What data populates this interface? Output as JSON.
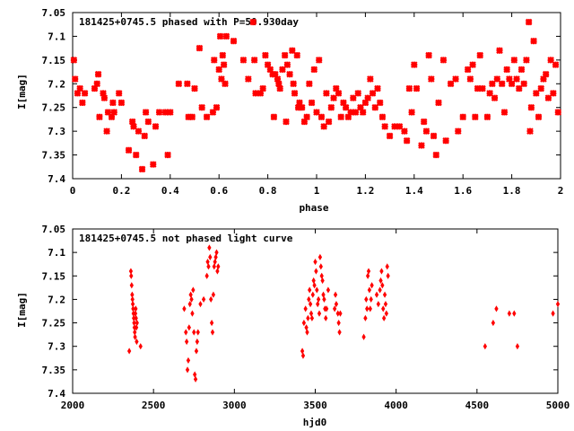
{
  "chart_data": [
    {
      "type": "scatter",
      "title": "181425+0745.5 phased with P=50.930day",
      "xlabel": "phase",
      "ylabel": "I[mag]",
      "xlim": [
        0,
        2
      ],
      "ylim": [
        7.4,
        7.05
      ],
      "y_inverted": true,
      "grid": false,
      "marker": "star",
      "color": "#ff0000",
      "xticks": [
        "0",
        "0.2",
        "0.4",
        "0.6",
        "0.8",
        "1",
        "1.2",
        "1.4",
        "1.6",
        "1.8",
        "2"
      ],
      "yticks": [
        "7.05",
        "7.1",
        "7.15",
        "7.2",
        "7.25",
        "7.3",
        "7.35",
        "7.4"
      ],
      "points": [
        [
          0.005,
          7.15
        ],
        [
          0.01,
          7.19
        ],
        [
          0.02,
          7.22
        ],
        [
          0.03,
          7.21
        ],
        [
          0.04,
          7.24
        ],
        [
          0.05,
          7.22
        ],
        [
          0.09,
          7.21
        ],
        [
          0.1,
          7.2
        ],
        [
          0.105,
          7.18
        ],
        [
          0.11,
          7.27
        ],
        [
          0.125,
          7.22
        ],
        [
          0.13,
          7.23
        ],
        [
          0.14,
          7.3
        ],
        [
          0.145,
          7.26
        ],
        [
          0.16,
          7.27
        ],
        [
          0.165,
          7.24
        ],
        [
          0.17,
          7.26
        ],
        [
          0.19,
          7.22
        ],
        [
          0.2,
          7.24
        ],
        [
          0.23,
          7.34
        ],
        [
          0.245,
          7.28
        ],
        [
          0.25,
          7.29
        ],
        [
          0.26,
          7.35
        ],
        [
          0.27,
          7.3
        ],
        [
          0.285,
          7.38
        ],
        [
          0.295,
          7.31
        ],
        [
          0.3,
          7.26
        ],
        [
          0.31,
          7.28
        ],
        [
          0.33,
          7.37
        ],
        [
          0.34,
          7.29
        ],
        [
          0.355,
          7.26
        ],
        [
          0.38,
          7.26
        ],
        [
          0.39,
          7.35
        ],
        [
          0.4,
          7.26
        ],
        [
          0.435,
          7.2
        ],
        [
          0.47,
          7.2
        ],
        [
          0.475,
          7.27
        ],
        [
          0.49,
          7.27
        ],
        [
          0.5,
          7.21
        ],
        [
          0.52,
          7.125
        ],
        [
          0.53,
          7.25
        ],
        [
          0.55,
          7.27
        ],
        [
          0.575,
          7.26
        ],
        [
          0.58,
          7.15
        ],
        [
          0.59,
          7.25
        ],
        [
          0.6,
          7.17
        ],
        [
          0.605,
          7.1
        ],
        [
          0.61,
          7.19
        ],
        [
          0.615,
          7.14
        ],
        [
          0.62,
          7.16
        ],
        [
          0.625,
          7.2
        ],
        [
          0.63,
          7.1
        ],
        [
          0.66,
          7.11
        ],
        [
          0.7,
          7.15
        ],
        [
          0.72,
          7.19
        ],
        [
          0.74,
          7.07
        ],
        [
          0.745,
          7.15
        ],
        [
          0.75,
          7.22
        ],
        [
          0.77,
          7.22
        ],
        [
          0.78,
          7.21
        ],
        [
          0.79,
          7.14
        ],
        [
          0.8,
          7.16
        ],
        [
          0.81,
          7.17
        ],
        [
          0.82,
          7.18
        ],
        [
          0.825,
          7.27
        ],
        [
          0.83,
          7.18
        ],
        [
          0.84,
          7.19
        ],
        [
          0.845,
          7.2
        ],
        [
          0.85,
          7.21
        ],
        [
          0.86,
          7.17
        ],
        [
          0.87,
          7.14
        ],
        [
          0.875,
          7.28
        ],
        [
          0.88,
          7.16
        ],
        [
          0.89,
          7.18
        ],
        [
          0.9,
          7.13
        ],
        [
          0.905,
          7.2
        ],
        [
          0.91,
          7.22
        ],
        [
          0.92,
          7.14
        ],
        [
          0.925,
          7.25
        ],
        [
          0.93,
          7.24
        ],
        [
          0.94,
          7.25
        ],
        [
          0.95,
          7.28
        ],
        [
          0.96,
          7.27
        ],
        [
          0.97,
          7.2
        ],
        [
          0.98,
          7.24
        ],
        [
          0.99,
          7.17
        ],
        [
          1.0,
          7.26
        ],
        [
          1.01,
          7.15
        ],
        [
          1.02,
          7.27
        ],
        [
          1.03,
          7.29
        ],
        [
          1.04,
          7.22
        ],
        [
          1.05,
          7.28
        ],
        [
          1.06,
          7.25
        ],
        [
          1.07,
          7.23
        ],
        [
          1.08,
          7.21
        ],
        [
          1.09,
          7.22
        ],
        [
          1.1,
          7.27
        ],
        [
          1.11,
          7.24
        ],
        [
          1.12,
          7.25
        ],
        [
          1.13,
          7.27
        ],
        [
          1.14,
          7.26
        ],
        [
          1.15,
          7.23
        ],
        [
          1.16,
          7.26
        ],
        [
          1.17,
          7.22
        ],
        [
          1.18,
          7.25
        ],
        [
          1.19,
          7.26
        ],
        [
          1.2,
          7.24
        ],
        [
          1.21,
          7.23
        ],
        [
          1.22,
          7.19
        ],
        [
          1.23,
          7.22
        ],
        [
          1.24,
          7.25
        ],
        [
          1.25,
          7.21
        ],
        [
          1.26,
          7.24
        ],
        [
          1.27,
          7.27
        ],
        [
          1.28,
          7.29
        ],
        [
          1.3,
          7.31
        ],
        [
          1.32,
          7.29
        ],
        [
          1.34,
          7.29
        ],
        [
          1.36,
          7.3
        ],
        [
          1.37,
          7.32
        ],
        [
          1.38,
          7.21
        ],
        [
          1.39,
          7.26
        ],
        [
          1.4,
          7.16
        ],
        [
          1.41,
          7.21
        ],
        [
          1.43,
          7.33
        ],
        [
          1.44,
          7.28
        ],
        [
          1.45,
          7.3
        ],
        [
          1.46,
          7.14
        ],
        [
          1.47,
          7.19
        ],
        [
          1.48,
          7.31
        ],
        [
          1.49,
          7.35
        ],
        [
          1.5,
          7.24
        ],
        [
          1.52,
          7.15
        ],
        [
          1.53,
          7.32
        ],
        [
          1.55,
          7.2
        ],
        [
          1.57,
          7.19
        ],
        [
          1.58,
          7.3
        ],
        [
          1.6,
          7.27
        ],
        [
          1.62,
          7.17
        ],
        [
          1.63,
          7.19
        ],
        [
          1.64,
          7.16
        ],
        [
          1.65,
          7.27
        ],
        [
          1.66,
          7.21
        ],
        [
          1.67,
          7.14
        ],
        [
          1.68,
          7.21
        ],
        [
          1.7,
          7.27
        ],
        [
          1.71,
          7.22
        ],
        [
          1.72,
          7.2
        ],
        [
          1.73,
          7.23
        ],
        [
          1.74,
          7.19
        ],
        [
          1.75,
          7.13
        ],
        [
          1.76,
          7.2
        ],
        [
          1.77,
          7.26
        ],
        [
          1.78,
          7.17
        ],
        [
          1.79,
          7.19
        ],
        [
          1.8,
          7.2
        ],
        [
          1.81,
          7.15
        ],
        [
          1.82,
          7.19
        ],
        [
          1.83,
          7.21
        ],
        [
          1.84,
          7.17
        ],
        [
          1.85,
          7.2
        ],
        [
          1.86,
          7.15
        ],
        [
          1.87,
          7.07
        ],
        [
          1.875,
          7.3
        ],
        [
          1.88,
          7.25
        ],
        [
          1.89,
          7.11
        ],
        [
          1.9,
          7.22
        ],
        [
          1.91,
          7.27
        ],
        [
          1.92,
          7.21
        ],
        [
          1.93,
          7.19
        ],
        [
          1.94,
          7.18
        ],
        [
          1.95,
          7.23
        ],
        [
          1.96,
          7.15
        ],
        [
          1.97,
          7.22
        ],
        [
          1.98,
          7.16
        ],
        [
          1.99,
          7.26
        ]
      ]
    },
    {
      "type": "scatter",
      "title": "181425+0745.5 not phased light curve",
      "xlabel": "hjd0",
      "ylabel": "I[mag]",
      "xlim": [
        2000,
        5000
      ],
      "ylim": [
        7.4,
        7.05
      ],
      "y_inverted": true,
      "grid": false,
      "marker": "diamond",
      "color": "#ff0000",
      "xticks": [
        "2000",
        "2500",
        "3000",
        "3500",
        "4000",
        "4500",
        "5000"
      ],
      "yticks": [
        "7.05",
        "7.1",
        "7.15",
        "7.2",
        "7.25",
        "7.3",
        "7.35",
        "7.4"
      ],
      "points": [
        [
          2350,
          7.31
        ],
        [
          2360,
          7.14
        ],
        [
          2362,
          7.15
        ],
        [
          2365,
          7.17
        ],
        [
          2368,
          7.19
        ],
        [
          2370,
          7.2
        ],
        [
          2372,
          7.21
        ],
        [
          2374,
          7.22
        ],
        [
          2376,
          7.23
        ],
        [
          2378,
          7.24
        ],
        [
          2380,
          7.25
        ],
        [
          2382,
          7.26
        ],
        [
          2384,
          7.27
        ],
        [
          2386,
          7.28
        ],
        [
          2388,
          7.23
        ],
        [
          2390,
          7.22
        ],
        [
          2392,
          7.24
        ],
        [
          2394,
          7.26
        ],
        [
          2396,
          7.29
        ],
        [
          2398,
          7.25
        ],
        [
          2420,
          7.3
        ],
        [
          2690,
          7.22
        ],
        [
          2700,
          7.27
        ],
        [
          2705,
          7.29
        ],
        [
          2710,
          7.35
        ],
        [
          2715,
          7.33
        ],
        [
          2720,
          7.26
        ],
        [
          2725,
          7.21
        ],
        [
          2730,
          7.19
        ],
        [
          2735,
          7.2
        ],
        [
          2740,
          7.23
        ],
        [
          2745,
          7.18
        ],
        [
          2750,
          7.27
        ],
        [
          2755,
          7.36
        ],
        [
          2760,
          7.37
        ],
        [
          2765,
          7.31
        ],
        [
          2770,
          7.29
        ],
        [
          2775,
          7.27
        ],
        [
          2790,
          7.21
        ],
        [
          2810,
          7.2
        ],
        [
          2830,
          7.15
        ],
        [
          2835,
          7.12
        ],
        [
          2840,
          7.13
        ],
        [
          2845,
          7.09
        ],
        [
          2850,
          7.11
        ],
        [
          2855,
          7.2
        ],
        [
          2860,
          7.25
        ],
        [
          2865,
          7.27
        ],
        [
          2870,
          7.19
        ],
        [
          2875,
          7.13
        ],
        [
          2880,
          7.12
        ],
        [
          2885,
          7.11
        ],
        [
          2890,
          7.1
        ],
        [
          2895,
          7.14
        ],
        [
          2900,
          7.13
        ],
        [
          3420,
          7.31
        ],
        [
          3425,
          7.32
        ],
        [
          3430,
          7.25
        ],
        [
          3440,
          7.22
        ],
        [
          3445,
          7.26
        ],
        [
          3450,
          7.27
        ],
        [
          3455,
          7.24
        ],
        [
          3460,
          7.2
        ],
        [
          3465,
          7.18
        ],
        [
          3470,
          7.21
        ],
        [
          3475,
          7.23
        ],
        [
          3480,
          7.24
        ],
        [
          3485,
          7.19
        ],
        [
          3490,
          7.16
        ],
        [
          3495,
          7.17
        ],
        [
          3500,
          7.12
        ],
        [
          3505,
          7.14
        ],
        [
          3510,
          7.18
        ],
        [
          3515,
          7.21
        ],
        [
          3520,
          7.2
        ],
        [
          3525,
          7.23
        ],
        [
          3530,
          7.11
        ],
        [
          3535,
          7.13
        ],
        [
          3540,
          7.15
        ],
        [
          3545,
          7.16
        ],
        [
          3550,
          7.19
        ],
        [
          3555,
          7.2
        ],
        [
          3560,
          7.22
        ],
        [
          3565,
          7.24
        ],
        [
          3570,
          7.22
        ],
        [
          3580,
          7.18
        ],
        [
          3620,
          7.22
        ],
        [
          3625,
          7.19
        ],
        [
          3630,
          7.21
        ],
        [
          3640,
          7.23
        ],
        [
          3645,
          7.25
        ],
        [
          3650,
          7.27
        ],
        [
          3655,
          7.23
        ],
        [
          3800,
          7.28
        ],
        [
          3810,
          7.24
        ],
        [
          3815,
          7.2
        ],
        [
          3820,
          7.22
        ],
        [
          3825,
          7.15
        ],
        [
          3830,
          7.14
        ],
        [
          3835,
          7.18
        ],
        [
          3840,
          7.22
        ],
        [
          3845,
          7.2
        ],
        [
          3850,
          7.17
        ],
        [
          3880,
          7.19
        ],
        [
          3890,
          7.21
        ],
        [
          3900,
          7.18
        ],
        [
          3905,
          7.16
        ],
        [
          3910,
          7.14
        ],
        [
          3915,
          7.17
        ],
        [
          3920,
          7.22
        ],
        [
          3925,
          7.24
        ],
        [
          3930,
          7.19
        ],
        [
          3935,
          7.21
        ],
        [
          3940,
          7.23
        ],
        [
          3945,
          7.13
        ],
        [
          3950,
          7.15
        ],
        [
          4550,
          7.3
        ],
        [
          4600,
          7.25
        ],
        [
          4620,
          7.22
        ],
        [
          4700,
          7.23
        ],
        [
          4730,
          7.23
        ],
        [
          4750,
          7.3
        ],
        [
          4970,
          7.23
        ],
        [
          5000,
          7.21
        ]
      ]
    }
  ]
}
